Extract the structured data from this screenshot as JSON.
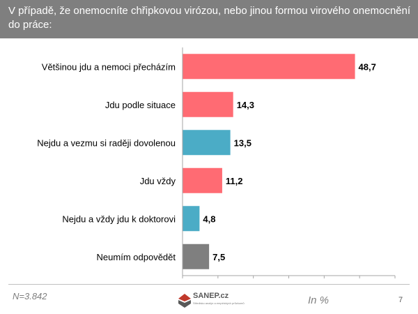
{
  "header": {
    "title": "V případě, že onemocníte chřipkovou virózou, nebo jinou formou virového onemocnění do práce:"
  },
  "footer": {
    "sample": "N=3.842",
    "unit": "In %",
    "page": "7",
    "logo_name": "SANEP.cz",
    "logo_tagline": "Středisko analýz a empirických průzkumů"
  },
  "colors": {
    "header_bg": "#7f7f7f",
    "red": "#ff6b73",
    "blue": "#4bacc6",
    "gray": "#7f7f7f"
  },
  "chart_data": {
    "type": "bar",
    "orientation": "horizontal",
    "categories": [
      "Většinou jdu a nemoci přecházím",
      "Jdu podle situace",
      "Nejdu a vezmu si raději dovolenou",
      "Jdu vždy",
      "Nejdu a vždy jdu k doktorovi",
      "Neumím odpovědět"
    ],
    "values": [
      48.7,
      14.3,
      13.5,
      11.2,
      4.8,
      7.5
    ],
    "value_labels": [
      "48,7",
      "14,3",
      "13,5",
      "11,2",
      "4,8",
      "7,5"
    ],
    "bar_colors": [
      "#ff6b73",
      "#ff6b73",
      "#4bacc6",
      "#ff6b73",
      "#4bacc6",
      "#7f7f7f"
    ],
    "xlim": [
      0,
      60
    ],
    "grid": false
  }
}
